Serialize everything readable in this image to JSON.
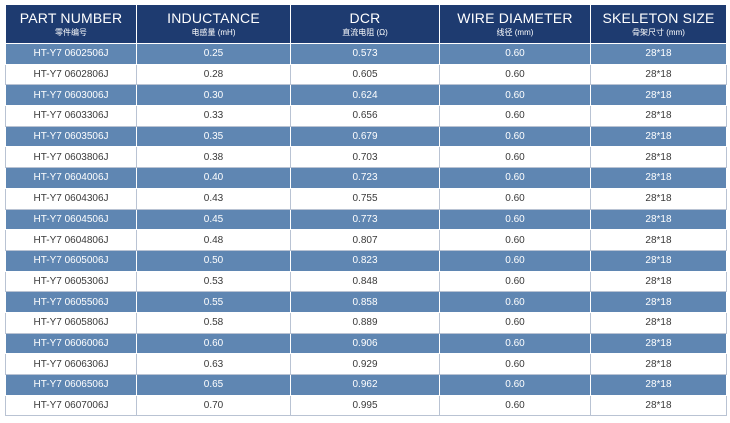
{
  "table": {
    "headers": [
      {
        "main": "PART NUMBER",
        "sub": "零件编号"
      },
      {
        "main": "INDUCTANCE",
        "sub": "电感量 (mH)"
      },
      {
        "main": "DCR",
        "sub": "直流电阻 (Ω)"
      },
      {
        "main": "WIRE DIAMETER",
        "sub": "线径 (mm)"
      },
      {
        "main": "SKELETON SIZE",
        "sub": "骨架尺寸 (mm)"
      }
    ],
    "rows": [
      [
        "HT-Y7 0602506J",
        "0.25",
        "0.573",
        "0.60",
        "28*18"
      ],
      [
        "HT-Y7 0602806J",
        "0.28",
        "0.605",
        "0.60",
        "28*18"
      ],
      [
        "HT-Y7 0603006J",
        "0.30",
        "0.624",
        "0.60",
        "28*18"
      ],
      [
        "HT-Y7 0603306J",
        "0.33",
        "0.656",
        "0.60",
        "28*18"
      ],
      [
        "HT-Y7 0603506J",
        "0.35",
        "0.679",
        "0.60",
        "28*18"
      ],
      [
        "HT-Y7 0603806J",
        "0.38",
        "0.703",
        "0.60",
        "28*18"
      ],
      [
        "HT-Y7 0604006J",
        "0.40",
        "0.723",
        "0.60",
        "28*18"
      ],
      [
        "HT-Y7 0604306J",
        "0.43",
        "0.755",
        "0.60",
        "28*18"
      ],
      [
        "HT-Y7 0604506J",
        "0.45",
        "0.773",
        "0.60",
        "28*18"
      ],
      [
        "HT-Y7 0604806J",
        "0.48",
        "0.807",
        "0.60",
        "28*18"
      ],
      [
        "HT-Y7 0605006J",
        "0.50",
        "0.823",
        "0.60",
        "28*18"
      ],
      [
        "HT-Y7 0605306J",
        "0.53",
        "0.848",
        "0.60",
        "28*18"
      ],
      [
        "HT-Y7 0605506J",
        "0.55",
        "0.858",
        "0.60",
        "28*18"
      ],
      [
        "HT-Y7 0605806J",
        "0.58",
        "0.889",
        "0.60",
        "28*18"
      ],
      [
        "HT-Y7 0606006J",
        "0.60",
        "0.906",
        "0.60",
        "28*18"
      ],
      [
        "HT-Y7 0606306J",
        "0.63",
        "0.929",
        "0.60",
        "28*18"
      ],
      [
        "HT-Y7 0606506J",
        "0.65",
        "0.962",
        "0.60",
        "28*18"
      ],
      [
        "HT-Y7 0607006J",
        "0.70",
        "0.995",
        "0.60",
        "28*18"
      ]
    ]
  },
  "colors": {
    "header_bg": "#1e3b70",
    "stripe_dark": "#5f86b2",
    "stripe_light": "#ffffff"
  }
}
